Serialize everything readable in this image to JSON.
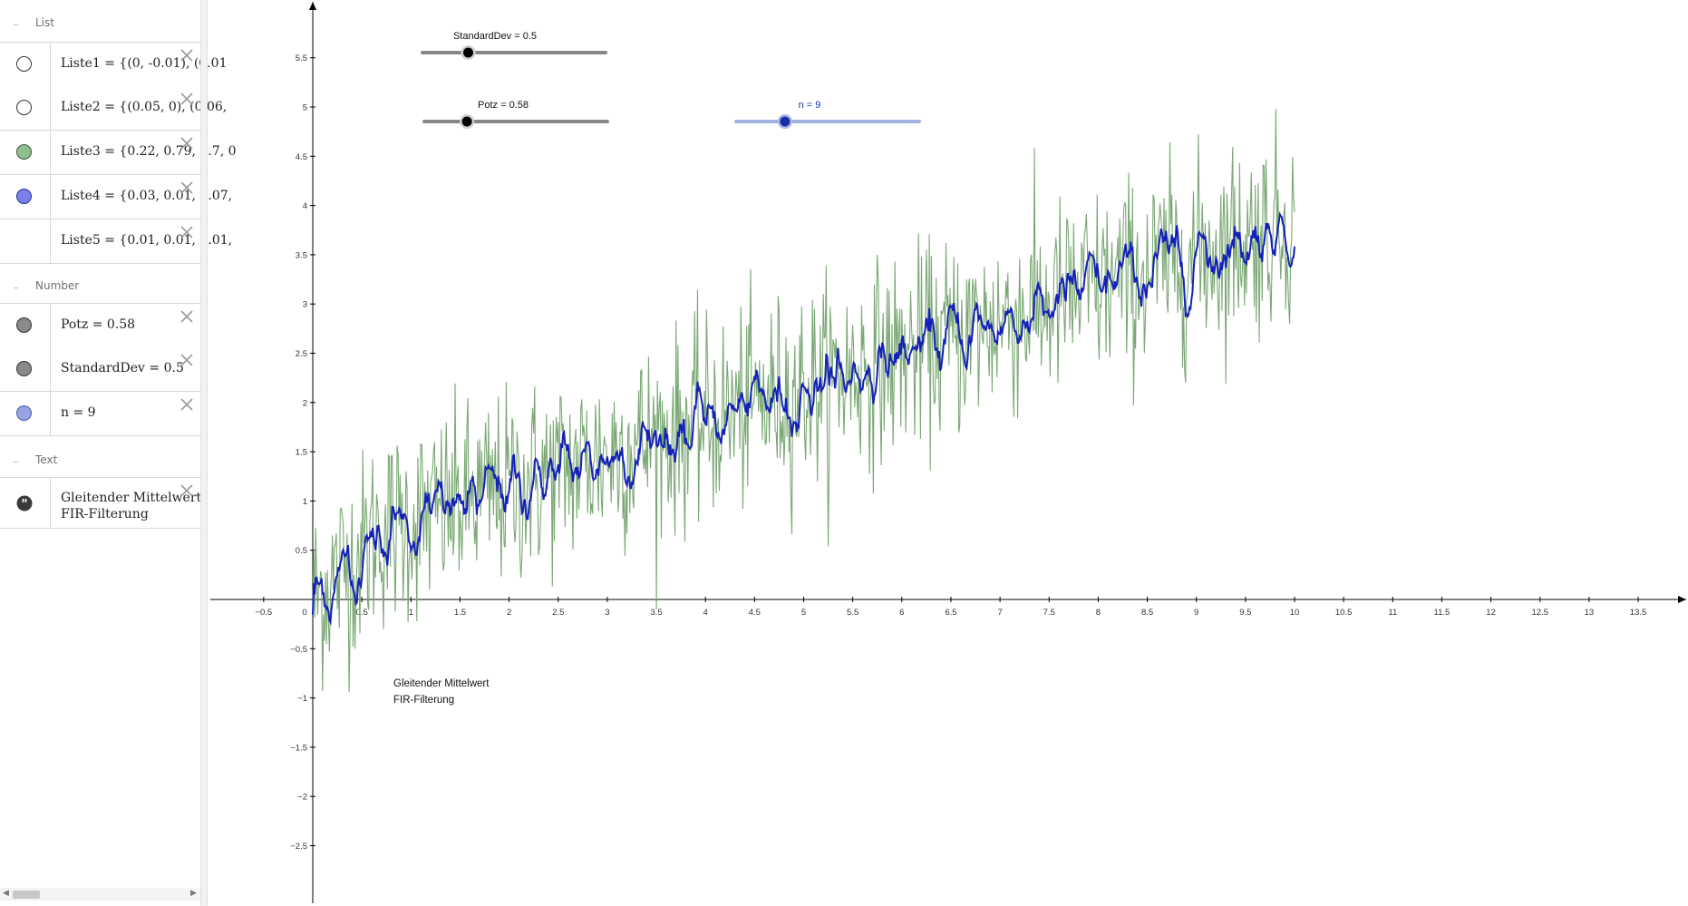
{
  "algebra": {
    "groups": [
      {
        "label": "List"
      },
      {
        "label": "Number"
      },
      {
        "label": "Text"
      }
    ],
    "items": [
      {
        "expr": "Liste1 = {(0, -0.01), (0.01",
        "dot_color": "#ffffff"
      },
      {
        "expr": "Liste2 = {(0.05, 0), (0.06,",
        "dot_color": "#ffffff"
      },
      {
        "expr": "Liste3 = {0.22, 0.79, 0.7, 0",
        "dot_color": "#8fbf8f"
      },
      {
        "expr": "Liste4 = {0.03, 0.01, 0.07,",
        "dot_color": "#7b7fe8"
      },
      {
        "expr": "Liste5 = {0.01, 0.01, 0.01,",
        "dot_color": ""
      },
      {
        "expr": "Potz = 0.58",
        "dot_color": "#8a8a8a"
      },
      {
        "expr": "StandardDev = 0.5",
        "dot_color": "#8a8a8a"
      },
      {
        "expr": "n = 9",
        "dot_color": "#95a3e0"
      },
      {
        "expr_line1": "Gleitender Mittelwert",
        "expr_line2": "FIR-Filterung",
        "icon": "quote-icon"
      }
    ]
  },
  "graphics": {
    "sliders": [
      {
        "caption": "StandardDev = 0.5",
        "value": 0.5,
        "min": 0,
        "max": 2,
        "color": "#000000",
        "track_color": "#888888"
      },
      {
        "caption": "Potz = 0.58",
        "value": 0.58,
        "min": 0.3,
        "max": 1.5,
        "color": "#000000",
        "track_color": "#888888"
      },
      {
        "caption": "n = 9",
        "value": 9,
        "min": 1,
        "max": 31,
        "color": "#1d2fa8",
        "track_color": "#9fb2e0"
      }
    ],
    "canvas_text": {
      "line1": "Gleitender Mittelwert",
      "line2": "FIR-Filterung"
    },
    "x_ticks": [
      "−0.5",
      "0",
      "0.5",
      "1",
      "1.5",
      "2",
      "2.5",
      "3",
      "3.5",
      "4",
      "4.5",
      "5",
      "5.5",
      "6",
      "6.5",
      "7",
      "7.5",
      "8",
      "8.5",
      "9",
      "9.5",
      "10",
      "10.5",
      "11",
      "11.5",
      "12",
      "12.5",
      "13",
      "13.5"
    ],
    "y_ticks": [
      "5.5",
      "5",
      "4.5",
      "4",
      "3.5",
      "3",
      "2.5",
      "2",
      "1.5",
      "1",
      "0.5",
      "−0.5",
      "−1",
      "−1.5",
      "−2",
      "−2.5"
    ]
  },
  "chart_data": {
    "type": "line",
    "xlim": [
      -0.95,
      13.95
    ],
    "ylim": [
      -3.05,
      6.05
    ],
    "grid": false,
    "series": [
      {
        "color": "#7aa874",
        "x_range": [
          0,
          10
        ],
        "trend": "y ≈ 0.34·x + 0.45 (noisy, σ≈0.5)"
      },
      {
        "color": "#1421b8",
        "x_range": [
          0,
          10
        ],
        "trend": "moving average of green series, n = 9"
      }
    ]
  },
  "colors": {
    "noisy": "#7aa874",
    "filtered": "#1421b8",
    "axis": "#000000"
  }
}
